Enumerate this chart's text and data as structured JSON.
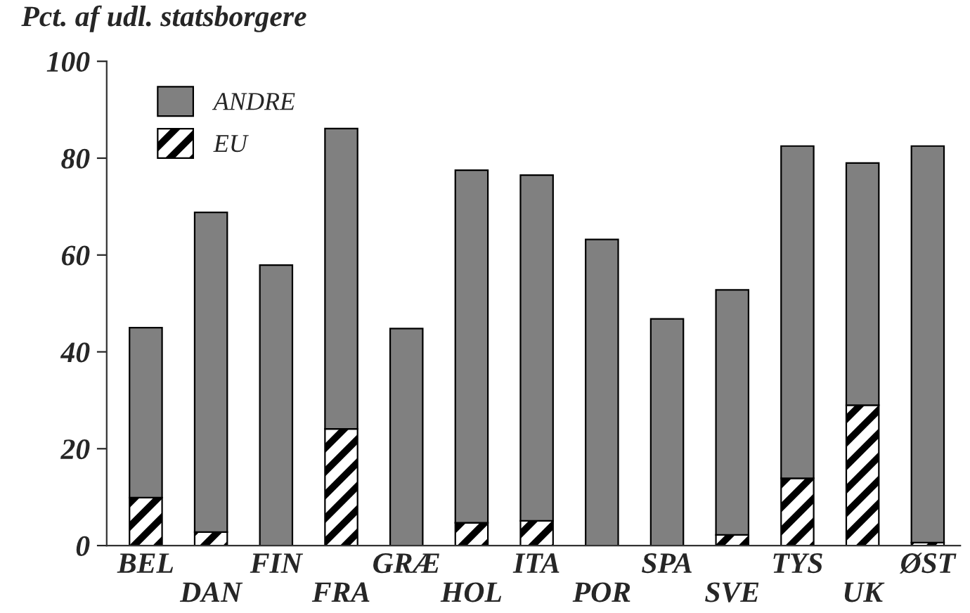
{
  "chart_data": {
    "type": "bar",
    "ylabel": "Pct. af udl. statsborgere",
    "categories": [
      "BEL",
      "DAN",
      "FIN",
      "FRA",
      "GRÆ",
      "HOL",
      "ITA",
      "POR",
      "SPA",
      "SVE",
      "TYS",
      "UK",
      "ØST"
    ],
    "stacked": true,
    "series": [
      {
        "name": "EU",
        "color": "#000000",
        "values": [
          9.9,
          2.8,
          0,
          24.1,
          0,
          4.7,
          5.1,
          0,
          0,
          2.2,
          13.9,
          29.0,
          0.6
        ]
      },
      {
        "name": "ANDRE",
        "color": "#808080",
        "values": [
          35.1,
          66.0,
          57.9,
          62.0,
          44.8,
          72.8,
          71.4,
          63.2,
          46.8,
          50.6,
          68.6,
          50.0,
          81.9
        ]
      }
    ],
    "ylim": [
      0,
      100
    ],
    "yticks": [
      0,
      20,
      40,
      60,
      80,
      100
    ],
    "grid": false,
    "legend": "top left"
  }
}
